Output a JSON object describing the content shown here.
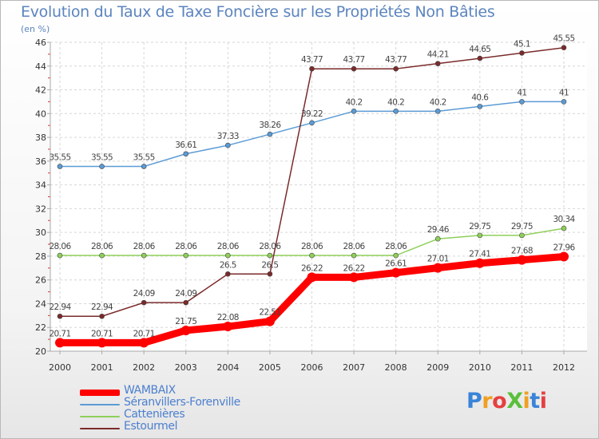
{
  "title": "Evolution du Taux de Taxe Foncière sur les Propriétés Non Bâties",
  "subtitle": "(en %)",
  "logo_text": "ProXiti",
  "chart_data": {
    "type": "line",
    "x": [
      2000,
      2001,
      2002,
      2003,
      2004,
      2005,
      2006,
      2007,
      2008,
      2009,
      2010,
      2011,
      2012
    ],
    "ylim": [
      20,
      46
    ],
    "yticks": [
      20,
      22,
      24,
      26,
      28,
      30,
      32,
      34,
      36,
      38,
      40,
      42,
      44,
      46
    ],
    "grid": true,
    "legend_position": "bottom-left",
    "series": [
      {
        "name": "WAMBAIX",
        "color": "#ff0000",
        "values": [
          20.71,
          20.71,
          20.71,
          21.75,
          22.08,
          22.51,
          26.22,
          26.22,
          26.61,
          27.01,
          27.41,
          27.68,
          27.96
        ],
        "labels": [
          "20.71",
          "20.71",
          "20.71",
          "21.75",
          "22.08",
          "22.51",
          "26.22",
          "26.22",
          "26.61",
          "27.01",
          "27.41",
          "27.68",
          "27.96"
        ]
      },
      {
        "name": "Séranvillers-Forenville",
        "color": "#5b9bd5",
        "values": [
          35.55,
          35.55,
          35.55,
          36.61,
          37.33,
          38.26,
          39.22,
          40.2,
          40.2,
          40.2,
          40.6,
          41,
          41
        ],
        "labels": [
          "35.55",
          "35.55",
          "35.55",
          "36.61",
          "37.33",
          "38.26",
          "39.22",
          "40.2",
          "40.2",
          "40.2",
          "40.6",
          "41",
          "41"
        ]
      },
      {
        "name": "Cattenières",
        "color": "#8fd05a",
        "values": [
          28.06,
          28.06,
          28.06,
          28.06,
          28.06,
          28.06,
          28.06,
          28.06,
          28.06,
          29.46,
          29.75,
          29.75,
          30.34
        ],
        "labels": [
          "28.06",
          "28.06",
          "28.06",
          "28.06",
          "28.06",
          "28.06",
          "28.06",
          "28.06",
          "28.06",
          "29.46",
          "29.75",
          "29.75",
          "30.34"
        ]
      },
      {
        "name": "Estourmel",
        "color": "#7b2a2a",
        "values": [
          22.94,
          22.94,
          24.09,
          24.09,
          26.5,
          26.5,
          43.77,
          43.77,
          43.77,
          44.21,
          44.65,
          45.1,
          45.55
        ],
        "labels": [
          "22.94",
          "22.94",
          "24.09",
          "24.09",
          "26.5",
          "26.5",
          "43.77",
          "43.77",
          "43.77",
          "44.21",
          "44.65",
          "45.1",
          "45.55"
        ]
      }
    ]
  }
}
